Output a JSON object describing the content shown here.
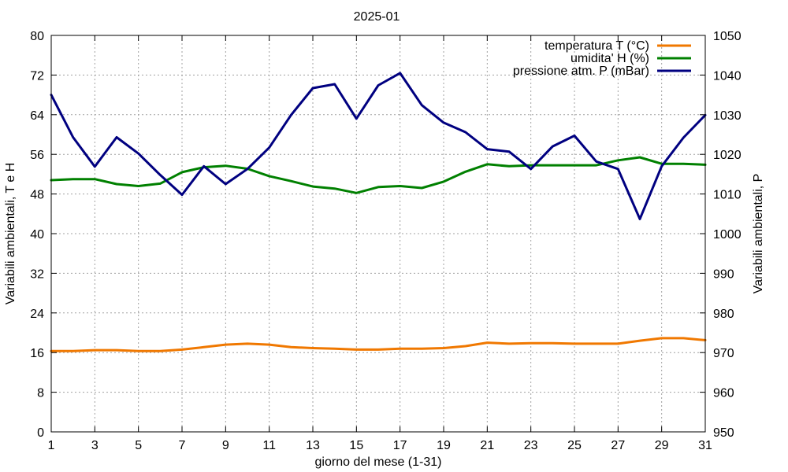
{
  "chart_data": {
    "type": "line",
    "title": "2025-01",
    "xlabel": "giorno del mese (1-31)",
    "ylabel": "Variabili ambientali, T e H",
    "y2label": "Variabili ambientali, P",
    "xlim": [
      1,
      31
    ],
    "ylim": [
      0,
      80
    ],
    "y2lim": [
      950,
      1050
    ],
    "x_ticks": [
      1,
      3,
      5,
      7,
      9,
      11,
      13,
      15,
      17,
      19,
      21,
      23,
      25,
      27,
      29,
      31
    ],
    "y_ticks": [
      0,
      8,
      16,
      24,
      32,
      40,
      48,
      56,
      64,
      72,
      80
    ],
    "y2_ticks": [
      950,
      960,
      970,
      980,
      990,
      1000,
      1010,
      1020,
      1030,
      1040,
      1050
    ],
    "grid": true,
    "legend": "top-right",
    "x": [
      1,
      2,
      3,
      4,
      5,
      6,
      7,
      8,
      9,
      10,
      11,
      12,
      13,
      14,
      15,
      16,
      17,
      18,
      19,
      20,
      21,
      22,
      23,
      24,
      25,
      26,
      27,
      28,
      29,
      30,
      31
    ],
    "series": [
      {
        "name": "temperatura T (°C)",
        "axis": "left",
        "color": "#f07800",
        "values": [
          16.3,
          16.3,
          16.5,
          16.5,
          16.3,
          16.3,
          16.6,
          17.1,
          17.6,
          17.8,
          17.6,
          17.1,
          16.9,
          16.8,
          16.6,
          16.6,
          16.8,
          16.8,
          16.9,
          17.3,
          18.0,
          17.8,
          17.9,
          17.9,
          17.8,
          17.8,
          17.8,
          18.4,
          18.9,
          18.9,
          18.5
        ]
      },
      {
        "name": "umidita' H (%)",
        "axis": "left",
        "color": "#008000",
        "values": [
          50.8,
          51.0,
          51.0,
          50.0,
          49.6,
          50.1,
          52.4,
          53.4,
          53.7,
          53.1,
          51.6,
          50.6,
          49.5,
          49.1,
          48.2,
          49.4,
          49.6,
          49.2,
          50.5,
          52.5,
          54.0,
          53.6,
          53.8,
          53.8,
          53.8,
          53.8,
          54.8,
          55.4,
          54.1,
          54.1,
          53.9
        ]
      },
      {
        "name": "pressione atm. P (mBar)",
        "axis": "right",
        "color": "#000080",
        "values": [
          1035.0,
          1024.3,
          1016.9,
          1024.3,
          1020.2,
          1014.8,
          1009.8,
          1017.0,
          1012.5,
          1016.3,
          1021.7,
          1029.9,
          1036.7,
          1037.7,
          1029.0,
          1037.4,
          1040.5,
          1032.4,
          1028.0,
          1025.6,
          1021.3,
          1020.7,
          1016.3,
          1022.0,
          1024.7,
          1018.2,
          1016.3,
          1003.7,
          1017.0,
          1024.2,
          1029.9
        ]
      }
    ]
  }
}
